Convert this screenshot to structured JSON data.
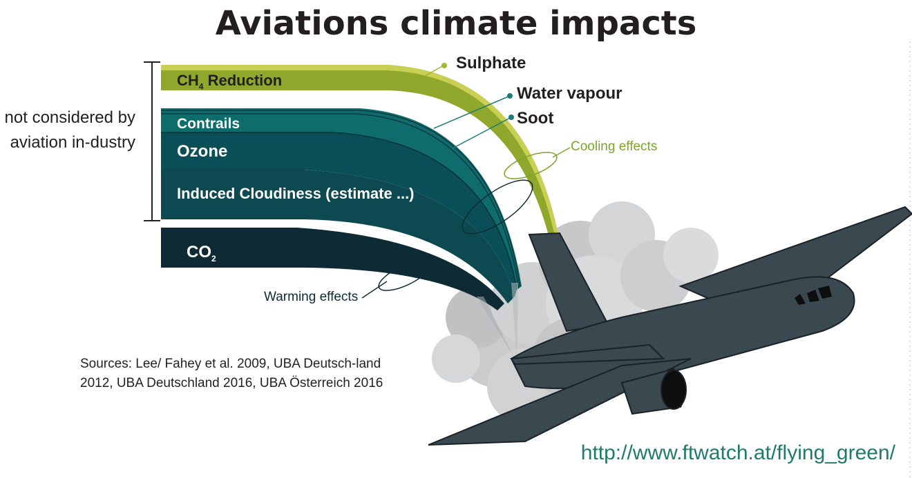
{
  "title": "Aviations climate impacts",
  "side_note": "not considered by aviation in-dustry",
  "bands": {
    "ch4": {
      "main": "CH",
      "sub": "4",
      "rest": " Reduction"
    },
    "contrails": "Contrails",
    "ozone": "Ozone",
    "induced": "Induced Cloudiness (estimate ...)",
    "co2": {
      "main": "CO",
      "sub": "2"
    }
  },
  "labels": {
    "sulphate": "Sulphate",
    "water_vapour": "Water vapour",
    "soot": "Soot",
    "cooling": "Cooling effects",
    "warming": "Warming effects"
  },
  "sources": "Sources: Lee/ Fahey et al. 2009, UBA Deutsch-land 2012, UBA Deutschland 2016, UBA Österreich 2016",
  "url": "http://www.ftwatch.at/flying_green/",
  "colors": {
    "ch4": "#8fa82b",
    "contrails": "#0f6c6c",
    "ozone": "#0a4f57",
    "induced": "#0d4950",
    "co2": "#0e2b35",
    "sulphate": "#a6b535",
    "cooling": "#7aa52c",
    "plane": "#3a4850",
    "url": "#1e7a6a"
  }
}
